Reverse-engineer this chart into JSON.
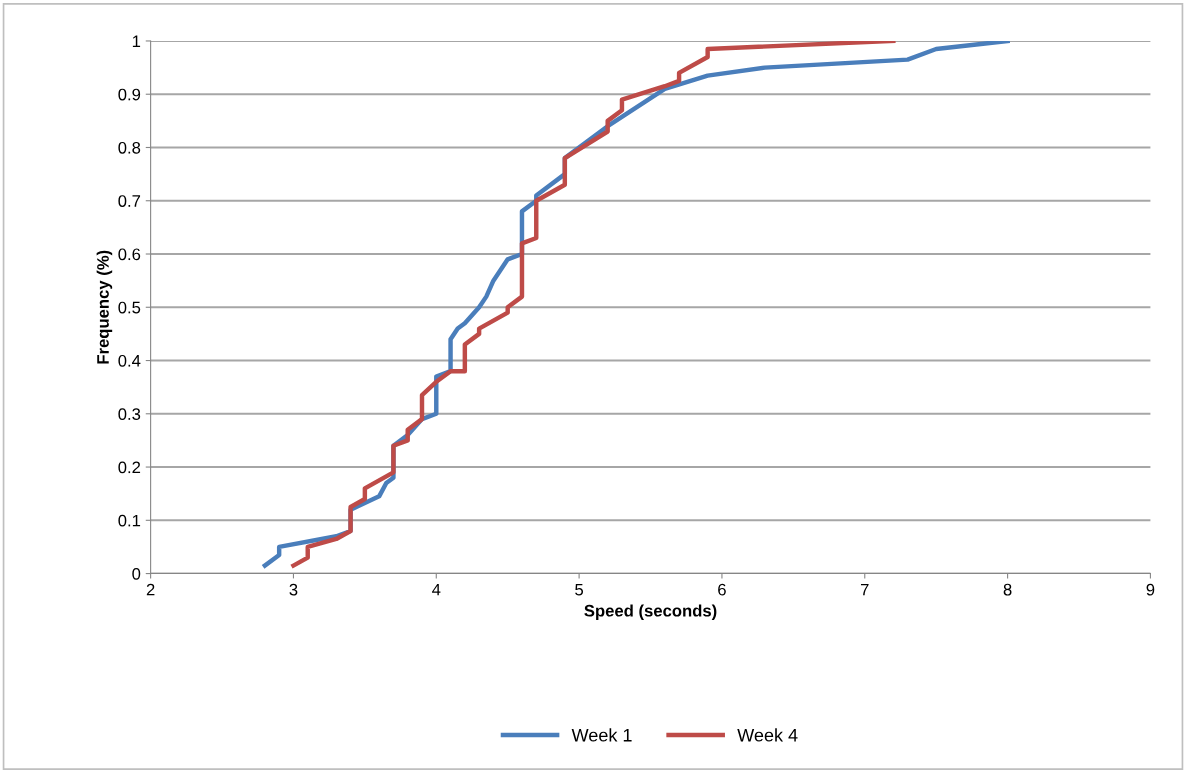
{
  "chart_data": {
    "type": "line",
    "xlabel": "Speed (seconds)",
    "ylabel": "Frequency (%)",
    "xlim": [
      2,
      9
    ],
    "xticks": [
      2,
      3,
      4,
      5,
      6,
      7,
      8,
      9
    ],
    "ylim": [
      0,
      1
    ],
    "yticks": [
      0,
      0.1,
      0.2,
      0.3,
      0.4,
      0.5,
      0.6,
      0.7,
      0.8,
      0.9,
      1
    ],
    "grid": "y",
    "legend": "bottom",
    "marker": "none",
    "line_style": "solid",
    "series": [
      {
        "name": "Week 1",
        "color": "#4a7ebb",
        "x": [
          2.8,
          2.9,
          2.9,
          3.3,
          3.4,
          3.4,
          3.6,
          3.65,
          3.7,
          3.7,
          3.8,
          3.9,
          4.0,
          4.0,
          4.1,
          4.1,
          4.15,
          4.2,
          4.3,
          4.35,
          4.4,
          4.45,
          4.5,
          4.6,
          4.6,
          4.7,
          4.7,
          4.9,
          4.9,
          5.2,
          5.6,
          5.9,
          6.3,
          7.3,
          7.5,
          8.0
        ],
        "values": [
          0.015,
          0.035,
          0.05,
          0.07,
          0.08,
          0.12,
          0.145,
          0.17,
          0.18,
          0.24,
          0.26,
          0.29,
          0.3,
          0.37,
          0.38,
          0.44,
          0.46,
          0.47,
          0.5,
          0.52,
          0.55,
          0.57,
          0.59,
          0.6,
          0.68,
          0.7,
          0.71,
          0.75,
          0.78,
          0.84,
          0.91,
          0.935,
          0.95,
          0.965,
          0.985,
          1.0
        ]
      },
      {
        "name": "Week 4",
        "color": "#be4b48",
        "x": [
          3.0,
          3.1,
          3.1,
          3.3,
          3.4,
          3.4,
          3.5,
          3.5,
          3.7,
          3.7,
          3.8,
          3.8,
          3.9,
          3.9,
          4.0,
          4.1,
          4.2,
          4.2,
          4.3,
          4.3,
          4.5,
          4.5,
          4.6,
          4.6,
          4.7,
          4.7,
          4.9,
          4.9,
          5.2,
          5.2,
          5.3,
          5.3,
          5.6,
          5.7,
          5.7,
          5.9,
          5.9,
          7.2
        ],
        "values": [
          0.015,
          0.03,
          0.05,
          0.065,
          0.08,
          0.125,
          0.14,
          0.16,
          0.19,
          0.24,
          0.25,
          0.27,
          0.29,
          0.335,
          0.36,
          0.38,
          0.38,
          0.43,
          0.45,
          0.46,
          0.49,
          0.5,
          0.52,
          0.62,
          0.63,
          0.7,
          0.73,
          0.78,
          0.83,
          0.85,
          0.87,
          0.89,
          0.915,
          0.925,
          0.94,
          0.97,
          0.985,
          1.0
        ]
      }
    ]
  }
}
